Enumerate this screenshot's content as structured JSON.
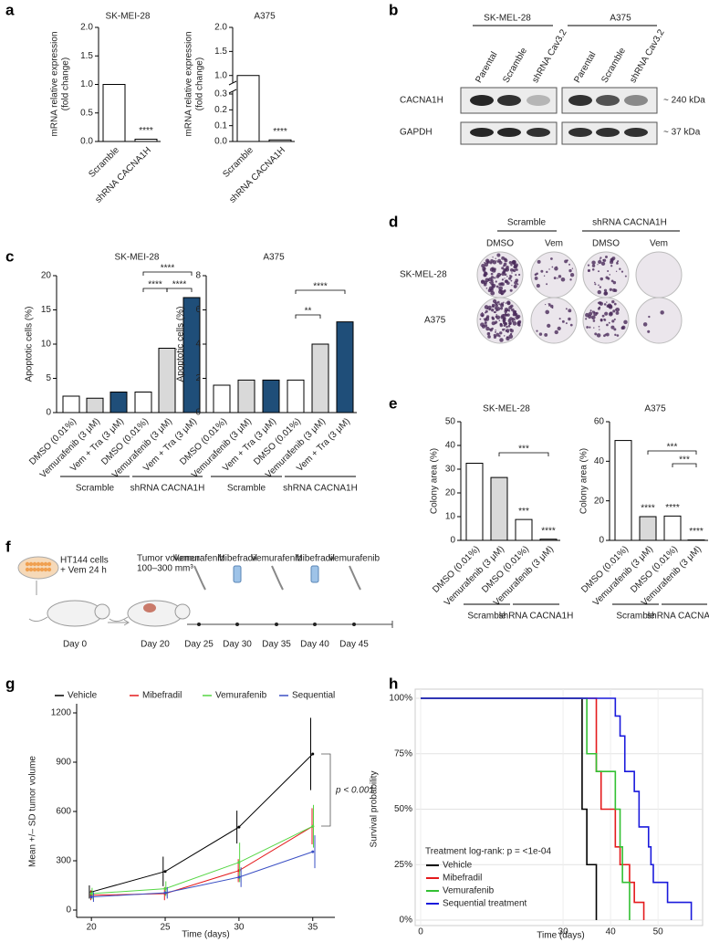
{
  "panel_labels": [
    "a",
    "b",
    "c",
    "d",
    "e",
    "f",
    "g",
    "h"
  ],
  "chart_data": [
    {
      "type": "bar",
      "title": "SK-MEI-28",
      "ylabel": [
        "mRNA relative expression",
        "(fold change)"
      ],
      "categories": [
        "Scramble",
        "shRNA CACNA1H"
      ],
      "values": [
        1.0,
        0.04
      ],
      "colors": [
        "#ffffff",
        "#ffffff"
      ],
      "ylim": [
        0,
        2
      ],
      "yticks": [
        {
          "value": 0,
          "label": "0.0"
        },
        0.5,
        {
          "value": 1,
          "label": "1.0"
        },
        1.5,
        {
          "value": 2,
          "label": "2.0"
        }
      ],
      "annotations": [
        "****"
      ]
    },
    {
      "type": "bar",
      "title": "A375",
      "ylabel": [
        "mRNA relative expression",
        "(fold change)"
      ],
      "categories": [
        "Scramble",
        "shRNA CACNA1H"
      ],
      "values": [
        1.0,
        0.01
      ],
      "colors": [
        "#ffffff",
        "#ffffff"
      ],
      "ylim": [
        0,
        2
      ],
      "ybreak": [
        0.3,
        0.9
      ],
      "yticks": [
        {
          "value": 0,
          "label": "0.0"
        },
        0.1,
        0.2,
        0.3,
        {
          "value": 1,
          "label": "1.0"
        },
        1.5,
        {
          "value": 2,
          "label": "2.0"
        }
      ],
      "annotations": [
        "****"
      ]
    },
    {
      "type": "bar",
      "title": "SK-MEI-28",
      "ylabel": [
        "Apoptotic cells (%)"
      ],
      "categories": [
        "DMSO (0.01%)",
        "Vemurafenib (3 μM)",
        "Vem + Tra (3 μM)",
        "DMSO (0.01%)",
        "Vemurafenib (3 μM)",
        "Vem + Tra (3 μM)"
      ],
      "values": [
        2.4,
        2.1,
        3.0,
        3.0,
        9.4,
        16.8
      ],
      "colors": [
        "#ffffff",
        "#d9d9d9",
        "#1f4e79",
        "#ffffff",
        "#d9d9d9",
        "#1f4e79"
      ],
      "ylim": [
        0,
        20
      ],
      "yticks": [
        0,
        5,
        10,
        15,
        20
      ],
      "groups": [
        "Scramble",
        "shRNA CACNA1H"
      ],
      "brackets": [
        "****",
        "****",
        "****"
      ]
    },
    {
      "type": "bar",
      "title": "A375",
      "ylabel": [
        "Apoptotic cells (%)"
      ],
      "categories": [
        "DMSO (0.01%)",
        "Vemurafenib (3 μM)",
        "Vem + Tra (3 μM)",
        "DMSO (0.01%)",
        "Vemurafenib (3 μM)",
        "Vem + Tra (3 μM)"
      ],
      "values": [
        1.6,
        1.9,
        1.9,
        1.9,
        4.0,
        5.3
      ],
      "colors": [
        "#ffffff",
        "#d9d9d9",
        "#1f4e79",
        "#ffffff",
        "#d9d9d9",
        "#1f4e79"
      ],
      "ylim": [
        0,
        8
      ],
      "yticks": [
        0,
        2,
        4,
        6,
        8
      ],
      "groups": [
        "Scramble",
        "shRNA CACNA1H"
      ],
      "brackets": [
        "**",
        "****"
      ]
    },
    {
      "type": "bar",
      "title": "SK-MEL-28",
      "ylabel": [
        "Colony area (%)"
      ],
      "categories": [
        "DMSO (0.01%)",
        "Vemurafenib (3 μM)",
        "DMSO (0.01%)",
        "Vemurafenib (3 μM)"
      ],
      "values": [
        32.5,
        26.5,
        8.8,
        0.5
      ],
      "colors": [
        "#ffffff",
        "#d9d9d9",
        "#ffffff",
        "#d9d9d9"
      ],
      "ylim": [
        0,
        50
      ],
      "yticks": [
        0,
        10,
        20,
        30,
        40,
        50
      ],
      "annotations": [
        "***",
        "****"
      ],
      "groups": [
        "Scramble",
        "shRNA CACNA1H"
      ],
      "brackets": [
        "***"
      ]
    },
    {
      "type": "bar",
      "title": "A375",
      "ylabel": [
        "Colony area (%)"
      ],
      "categories": [
        "DMSO (0.01%)",
        "Vemurafenib (3 μM)",
        "DMSO (0.01%)",
        "Vemurafenib (3 μM)"
      ],
      "values": [
        50.5,
        12.0,
        12.3,
        0.2
      ],
      "colors": [
        "#ffffff",
        "#d9d9d9",
        "#ffffff",
        "#d9d9d9"
      ],
      "ylim": [
        0,
        60
      ],
      "yticks": [
        0,
        20,
        40,
        60
      ],
      "annotations": [
        "****",
        "****",
        "****"
      ],
      "groups": [
        "Scramble",
        "shRNA CACNA1H"
      ],
      "brackets": [
        "***",
        "***"
      ]
    },
    {
      "type": "line",
      "x": [
        20,
        25,
        30,
        35
      ],
      "xlim": [
        19,
        36.5
      ],
      "xticks": [
        20,
        25,
        30,
        35
      ],
      "ylim": [
        0,
        1200
      ],
      "yticks": [
        0,
        300,
        600,
        900,
        1200
      ],
      "xlabel": "Time (days)",
      "ylabel": "Mean +/– SD tumor volume",
      "annotations": [
        "p < 0.001"
      ],
      "series": [
        {
          "name": "Vehicle",
          "color": "#000000",
          "values": [
            110,
            235,
            505,
            950
          ],
          "errors": [
            40,
            90,
            100,
            220
          ]
        },
        {
          "name": "Mibefradil",
          "color": "#e41a1c",
          "values": [
            90,
            100,
            240,
            510
          ],
          "errors": [
            30,
            40,
            70,
            110
          ]
        },
        {
          "name": "Vemurafenib",
          "color": "#55d644",
          "values": [
            100,
            130,
            290,
            510
          ],
          "errors": [
            35,
            45,
            120,
            130
          ]
        },
        {
          "name": "Sequential",
          "color": "#3a4fc4",
          "values": [
            80,
            105,
            200,
            355
          ],
          "errors": [
            30,
            35,
            60,
            100
          ]
        }
      ]
    },
    {
      "type": "step",
      "xlim": [
        0,
        59
      ],
      "xticks": [
        0,
        30,
        40,
        50
      ],
      "ylim": [
        0,
        100
      ],
      "yticks": [
        {
          "value": 0,
          "label": "0%"
        },
        {
          "value": 25,
          "label": "25%"
        },
        {
          "value": 50,
          "label": "50%"
        },
        {
          "value": 75,
          "label": "75%"
        },
        {
          "value": 100,
          "label": "100%"
        }
      ],
      "xlabel": "Time (days)",
      "ylabel": "Survival probability",
      "annotations": [
        "Treatment log-rank: p = <1e-04"
      ],
      "grid": true,
      "series": [
        {
          "name": "Vehicle",
          "color": "#000000",
          "x": [
            0,
            34,
            35,
            37
          ],
          "values": [
            100,
            50,
            25,
            0
          ]
        },
        {
          "name": "Mibefradil",
          "color": "#e41a1c",
          "x": [
            0,
            37,
            38,
            41,
            42,
            44,
            45,
            47
          ],
          "values": [
            100,
            67,
            50,
            33,
            25,
            17,
            8,
            0
          ]
        },
        {
          "name": "Vemurafenib",
          "color": "#33c033",
          "x": [
            0,
            35,
            37,
            41,
            42,
            42.5,
            44
          ],
          "values": [
            100,
            75,
            67,
            50,
            33,
            17,
            0
          ]
        },
        {
          "name": "Sequential treatment",
          "color": "#1a1adc",
          "x": [
            0,
            41,
            42,
            43,
            45,
            46,
            48,
            48.5,
            49,
            52,
            57
          ],
          "values": [
            100,
            92,
            83,
            67,
            58,
            42,
            33,
            25,
            17,
            8,
            0
          ]
        }
      ]
    }
  ],
  "blot": {
    "cell_lines": [
      "SK-MEL-28",
      "A375"
    ],
    "lanes": [
      "Parental",
      "Scramble",
      "shRNA Cav3.2",
      "Parental",
      "Scramble",
      "shRNA Cav3.2"
    ],
    "proteins": [
      "CACNA1H",
      "GAPDH"
    ],
    "sizes": [
      "~ 240 kDa",
      "~ 37 kDa"
    ]
  },
  "colony": {
    "conditions": [
      "Scramble",
      "shRNA CACNA1H"
    ],
    "treatments": [
      "DMSO",
      "Vem",
      "DMSO",
      "Vem"
    ],
    "cell_lines": [
      "SK-MEL-28",
      "A375"
    ]
  },
  "schematic": {
    "cells": [
      "HT144 cells",
      "+ Vem 24 h"
    ],
    "tumor": [
      "Tumor volumen:",
      "100–300 mm³"
    ],
    "drugs": [
      "Vemurafenib",
      "Mibefradil",
      "Vemurafenib",
      "Mibefradil",
      "Vemurafenib"
    ],
    "days": [
      "Day 0",
      "Day 20",
      "Day 25",
      "Day 30",
      "Day 35",
      "Day 40",
      "Day 45"
    ]
  }
}
